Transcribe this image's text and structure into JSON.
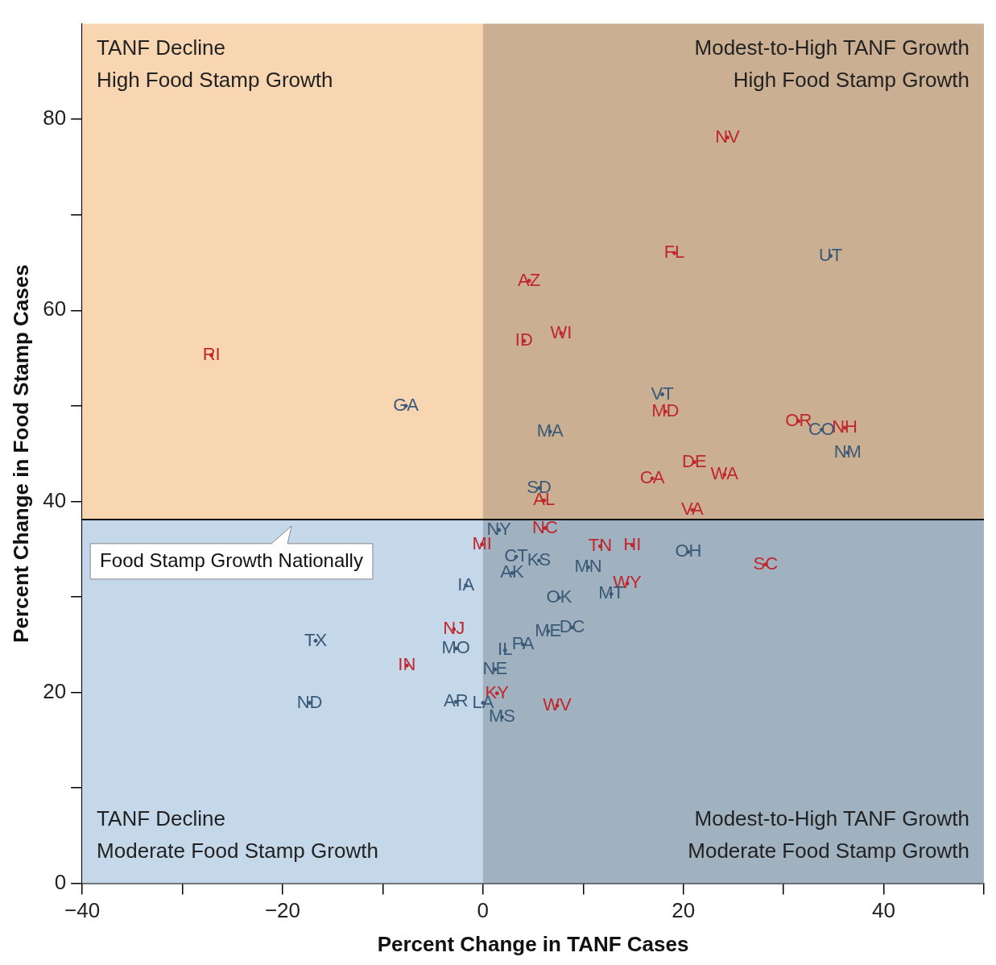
{
  "chart_data": {
    "type": "scatter",
    "xlabel": "Percent Change in TANF Cases",
    "ylabel": "Percent Change in Food Stamp Cases",
    "xlim": [
      -40,
      50
    ],
    "xticks": [
      {
        "value": -40,
        "label": "−40"
      },
      {
        "value": -30,
        "label": null
      },
      {
        "value": -20,
        "label": "−20"
      },
      {
        "value": -10,
        "label": null
      },
      0,
      {
        "value": 10,
        "label": null
      },
      20,
      {
        "value": 30,
        "label": null
      },
      40,
      {
        "value": 50,
        "label": null
      }
    ],
    "ylim": [
      0,
      90
    ],
    "yticks": [
      0,
      {
        "value": 10,
        "label": null
      },
      20,
      {
        "value": 30,
        "label": null
      },
      40,
      {
        "value": 50,
        "label": null
      },
      60,
      {
        "value": 70,
        "label": null
      },
      80
    ],
    "grid": false,
    "legend": false,
    "marker": "circle",
    "bands": [
      {
        "axis": "y",
        "from": 38.1,
        "to": 90,
        "color": "#f8d6b2"
      },
      {
        "axis": "y",
        "from": 0,
        "to": 38.1,
        "color": "#c4d8ea"
      },
      {
        "axis": "x",
        "from": 0,
        "to": 50,
        "color": "#000000"
      }
    ],
    "ref_lines": [
      {
        "axis": "y",
        "value": 38.1,
        "label": "Food Stamp Growth Nationally",
        "color": "#000000"
      }
    ],
    "annotations": [
      "TANF Decline\nHigh Food Stamp Growth",
      "Modest-to-High TANF Growth\nHigh Food Stamp Growth",
      "TANF Decline\nModerate Food Stamp Growth",
      "Modest-to-High TANF Growth\nModerate Food Stamp Growth"
    ],
    "series": [
      {
        "color": "#c0272d",
        "x": [
          24.4,
          19.1,
          4.6,
          4.1,
          7.8,
          -27.1,
          18.2,
          31.5,
          36.1,
          21.1,
          24.1,
          16.9,
          6.1,
          20.9,
          6.2,
          -0.1,
          11.7,
          14.9,
          28.2,
          14.4,
          -2.9,
          -7.6,
          1.4,
          7.4
        ],
        "values": [
          78.1,
          66.0,
          63.1,
          56.8,
          57.6,
          55.3,
          49.4,
          48.4,
          47.7,
          44.1,
          42.8,
          42.4,
          40.1,
          39.1,
          37.2,
          35.5,
          35.3,
          35.4,
          33.4,
          31.4,
          26.6,
          22.8,
          19.9,
          18.6
        ],
        "value_labels": [
          "NV",
          "FL",
          "AZ",
          "ID",
          "WI",
          "RI",
          "MD",
          "OR",
          "NH",
          "DE",
          "WA",
          "CA",
          "AL",
          "VA",
          "NC",
          "MI",
          "TN",
          "HI",
          "SC",
          "WY",
          "NJ",
          "IN",
          "KY",
          "WV"
        ]
      },
      {
        "color": "#3b5a78",
        "x": [
          34.7,
          -7.7,
          17.9,
          6.7,
          33.8,
          36.4,
          5.6,
          1.6,
          20.5,
          3.3,
          5.6,
          2.9,
          10.5,
          -1.7,
          12.8,
          7.6,
          6.5,
          8.9,
          -16.7,
          -2.7,
          4.0,
          2.2,
          1.2,
          -17.3,
          -2.7,
          0.0,
          1.9
        ],
        "values": [
          65.7,
          50.0,
          51.2,
          47.3,
          47.5,
          45.1,
          41.4,
          37.0,
          34.7,
          34.2,
          33.8,
          32.5,
          33.1,
          31.2,
          30.3,
          29.9,
          26.4,
          26.8,
          25.4,
          24.6,
          25.0,
          24.4,
          22.4,
          18.9,
          19.0,
          18.9,
          17.4
        ],
        "value_labels": [
          "UT",
          "GA",
          "VT",
          "MA",
          "CO",
          "NM",
          "SD",
          "NY",
          "OH",
          "CT",
          "KS",
          "AK",
          "MN",
          "IA",
          "MT",
          "OK",
          "ME",
          "DC",
          "TX",
          "MO",
          "PA",
          "IL",
          "NE",
          "ND",
          "AR",
          "LA",
          "MS"
        ]
      }
    ]
  }
}
